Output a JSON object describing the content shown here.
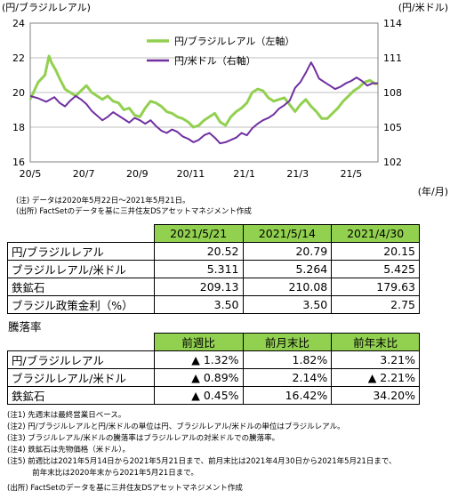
{
  "chart_data": {
    "type": "line",
    "left_axis_unit": "(円/ブラジルレアル)",
    "right_axis_unit": "(円/米ドル)",
    "x_unit": "(年/月)",
    "x_ticks": [
      "20/5",
      "20/7",
      "20/9",
      "20/11",
      "21/1",
      "21/3",
      "21/5"
    ],
    "y_left": {
      "ticks": [
        "24",
        "22",
        "20",
        "18",
        "16"
      ],
      "min": 16,
      "max": 24
    },
    "y_right": {
      "ticks": [
        "114",
        "111",
        "108",
        "105",
        "102"
      ],
      "min": 102,
      "max": 114
    },
    "grid": "horizontal",
    "legend_position": "top-center",
    "series": [
      {
        "name": "円/ブラジルレアル（左軸）",
        "axis": "left",
        "color": "#92d050",
        "points": [
          [
            0,
            19.6
          ],
          [
            0.3,
            20.6
          ],
          [
            0.55,
            21.0
          ],
          [
            0.7,
            22.1
          ],
          [
            0.8,
            21.7
          ],
          [
            0.95,
            21.3
          ],
          [
            1.1,
            20.8
          ],
          [
            1.3,
            20.2
          ],
          [
            1.5,
            20.0
          ],
          [
            1.7,
            19.8
          ],
          [
            1.9,
            20.1
          ],
          [
            2.1,
            20.4
          ],
          [
            2.3,
            20.0
          ],
          [
            2.5,
            19.8
          ],
          [
            2.7,
            19.6
          ],
          [
            2.9,
            19.8
          ],
          [
            3.1,
            19.5
          ],
          [
            3.3,
            19.4
          ],
          [
            3.5,
            19.0
          ],
          [
            3.7,
            19.1
          ],
          [
            3.9,
            18.7
          ],
          [
            4.1,
            18.6
          ],
          [
            4.3,
            19.1
          ],
          [
            4.5,
            19.5
          ],
          [
            4.7,
            19.4
          ],
          [
            4.9,
            19.2
          ],
          [
            5.1,
            18.9
          ],
          [
            5.3,
            18.8
          ],
          [
            5.5,
            18.6
          ],
          [
            5.7,
            18.5
          ],
          [
            5.9,
            18.3
          ],
          [
            6.1,
            18.0
          ],
          [
            6.3,
            18.1
          ],
          [
            6.5,
            18.4
          ],
          [
            6.7,
            18.6
          ],
          [
            6.9,
            18.8
          ],
          [
            7.1,
            18.3
          ],
          [
            7.3,
            18.1
          ],
          [
            7.5,
            18.6
          ],
          [
            7.7,
            18.9
          ],
          [
            7.9,
            19.1
          ],
          [
            8.1,
            19.4
          ],
          [
            8.3,
            20.0
          ],
          [
            8.5,
            20.2
          ],
          [
            8.7,
            20.1
          ],
          [
            8.9,
            19.7
          ],
          [
            9.1,
            19.5
          ],
          [
            9.3,
            19.6
          ],
          [
            9.5,
            19.7
          ],
          [
            9.7,
            19.3
          ],
          [
            9.9,
            18.9
          ],
          [
            10.1,
            19.3
          ],
          [
            10.3,
            19.6
          ],
          [
            10.5,
            19.2
          ],
          [
            10.7,
            18.9
          ],
          [
            10.9,
            18.5
          ],
          [
            11.1,
            18.5
          ],
          [
            11.3,
            18.8
          ],
          [
            11.5,
            19.1
          ],
          [
            11.7,
            19.5
          ],
          [
            11.9,
            19.8
          ],
          [
            12.1,
            20.1
          ],
          [
            12.3,
            20.3
          ],
          [
            12.5,
            20.6
          ],
          [
            12.7,
            20.7
          ],
          [
            12.9,
            20.5
          ],
          [
            13.0,
            20.52
          ]
        ]
      },
      {
        "name": "円/米ドル（右軸）",
        "axis": "right",
        "color": "#7030a0",
        "points": [
          [
            0,
            107.7
          ],
          [
            0.3,
            107.5
          ],
          [
            0.6,
            107.2
          ],
          [
            0.9,
            107.6
          ],
          [
            1.1,
            107.1
          ],
          [
            1.3,
            106.8
          ],
          [
            1.5,
            107.3
          ],
          [
            1.7,
            107.7
          ],
          [
            1.9,
            107.4
          ],
          [
            2.1,
            107.0
          ],
          [
            2.3,
            106.4
          ],
          [
            2.5,
            106.0
          ],
          [
            2.7,
            105.6
          ],
          [
            2.9,
            105.9
          ],
          [
            3.1,
            106.3
          ],
          [
            3.3,
            106.0
          ],
          [
            3.5,
            105.7
          ],
          [
            3.7,
            105.4
          ],
          [
            3.9,
            105.8
          ],
          [
            4.1,
            105.6
          ],
          [
            4.3,
            105.3
          ],
          [
            4.5,
            105.6
          ],
          [
            4.7,
            105.1
          ],
          [
            4.9,
            104.7
          ],
          [
            5.1,
            104.5
          ],
          [
            5.3,
            104.8
          ],
          [
            5.5,
            104.6
          ],
          [
            5.7,
            104.2
          ],
          [
            5.9,
            104.0
          ],
          [
            6.1,
            103.7
          ],
          [
            6.3,
            103.9
          ],
          [
            6.5,
            104.3
          ],
          [
            6.7,
            104.5
          ],
          [
            6.9,
            104.1
          ],
          [
            7.1,
            103.6
          ],
          [
            7.3,
            103.7
          ],
          [
            7.5,
            103.9
          ],
          [
            7.7,
            104.1
          ],
          [
            7.9,
            104.5
          ],
          [
            8.1,
            104.3
          ],
          [
            8.3,
            104.9
          ],
          [
            8.5,
            105.3
          ],
          [
            8.7,
            105.6
          ],
          [
            8.9,
            105.8
          ],
          [
            9.1,
            106.1
          ],
          [
            9.3,
            106.6
          ],
          [
            9.5,
            106.9
          ],
          [
            9.7,
            107.3
          ],
          [
            9.9,
            108.4
          ],
          [
            10.1,
            108.9
          ],
          [
            10.3,
            109.7
          ],
          [
            10.5,
            110.6
          ],
          [
            10.6,
            110.2
          ],
          [
            10.8,
            109.2
          ],
          [
            11.0,
            108.9
          ],
          [
            11.2,
            108.6
          ],
          [
            11.4,
            108.3
          ],
          [
            11.6,
            108.5
          ],
          [
            11.8,
            108.8
          ],
          [
            12.0,
            109.0
          ],
          [
            12.2,
            109.3
          ],
          [
            12.4,
            109.0
          ],
          [
            12.6,
            108.6
          ],
          [
            12.8,
            108.8
          ],
          [
            13.0,
            108.8
          ]
        ]
      }
    ]
  },
  "notes_top": [
    "(注)  データは2020年5月22日～2021年5月21日。",
    "(出所)  FactSetのデータを基に三井住友DSアセットマネジメント作成"
  ],
  "table1": {
    "headers": [
      "2021/5/21",
      "2021/5/14",
      "2021/4/30"
    ],
    "rows": [
      {
        "label": "円/ブラジルレアル",
        "values": [
          "20.52",
          "20.79",
          "20.15"
        ]
      },
      {
        "label": "ブラジルレアル/米ドル",
        "values": [
          "5.311",
          "5.264",
          "5.425"
        ]
      },
      {
        "label": "鉄鉱石",
        "values": [
          "209.13",
          "210.08",
          "179.63"
        ]
      },
      {
        "label": "ブラジル政策金利（%）",
        "values": [
          "3.50",
          "3.50",
          "2.75"
        ]
      }
    ]
  },
  "table2": {
    "title": "騰落率",
    "headers": [
      "前週比",
      "前月末比",
      "前年末比"
    ],
    "rows": [
      {
        "label": "円/ブラジルレアル",
        "values": [
          "▲ 1.32%",
          "1.82%",
          "3.21%"
        ]
      },
      {
        "label": "ブラジルレアル/米ドル",
        "values": [
          "▲ 0.89%",
          "2.14%",
          "▲ 2.21%"
        ]
      },
      {
        "label": "鉄鉱石",
        "values": [
          "▲ 0.45%",
          "16.42%",
          "34.20%"
        ]
      }
    ]
  },
  "notes_bottom": [
    "(注1)  先週末は最終営業日ベース。",
    "(注2)  円/ブラジルレアルと円/米ドルの単位は円、ブラジルレアル/米ドルの単位はブラジルレアル。",
    "(注3)  ブラジルレアル/米ドルの騰落率はブラジルレアルの対米ドルでの騰落率。",
    "(注4)  鉄鉱石は先物価格（米ドル）。",
    "(注5)  前週比は2021年5月14日から2021年5月21日まで、前月末比は2021年4月30日から2021年5月21日まで、",
    "　　　  前年末比は2020年末から2021年5月21日まで。",
    "(出所)  FactSetのデータを基に三井住友DSアセットマネジメント作成"
  ]
}
